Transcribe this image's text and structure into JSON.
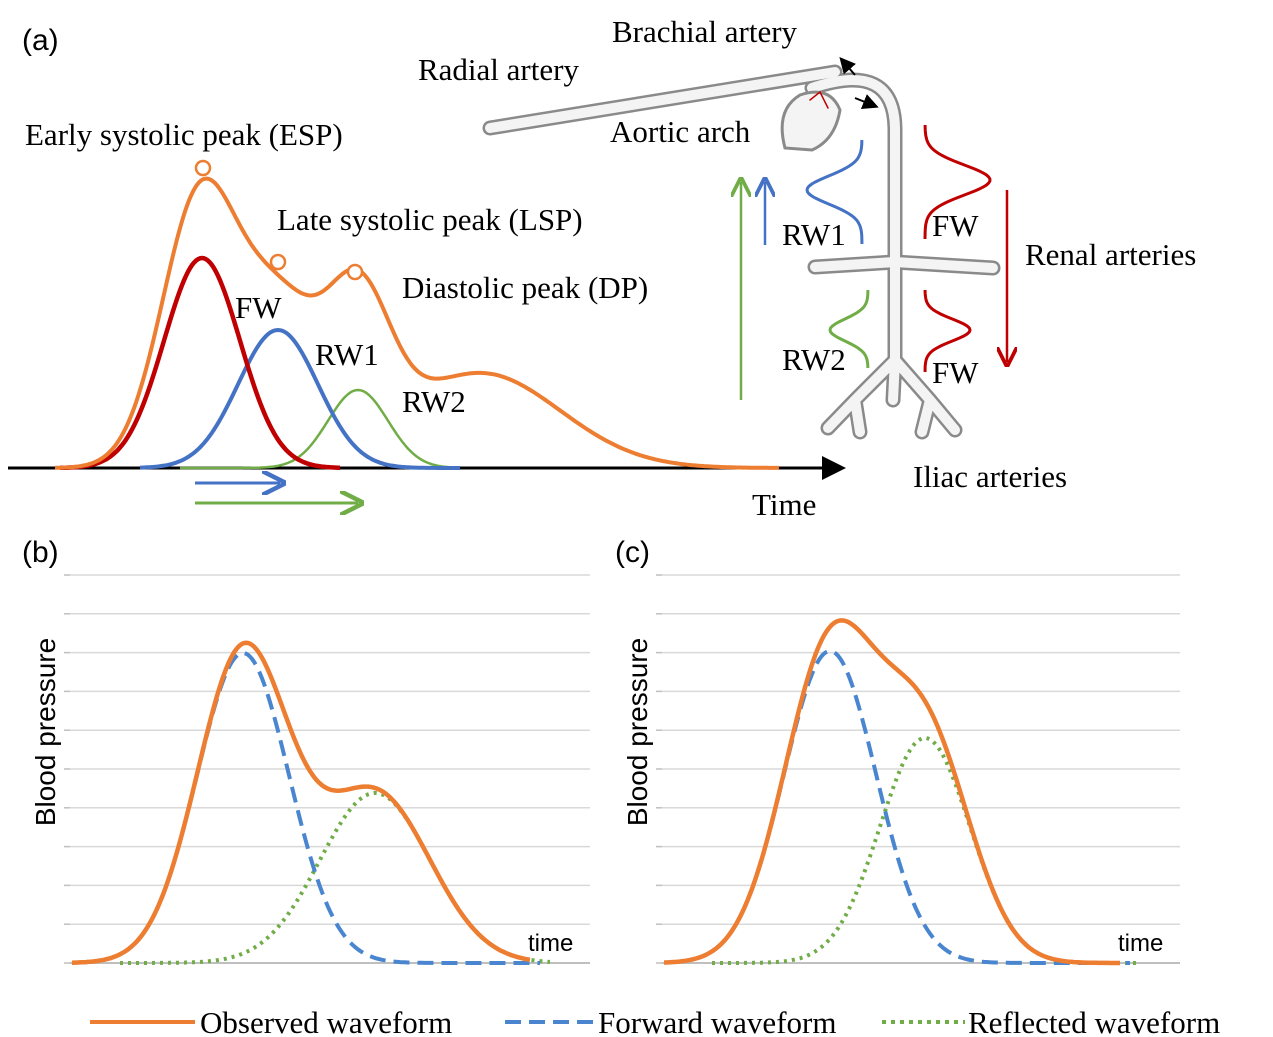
{
  "panel_a": {
    "label": "(a)",
    "waveform": {
      "esp": "Early systolic peak (ESP)",
      "lsp": "Late systolic peak (LSP)",
      "dp": "Diastolic peak (DP)",
      "fw": "FW",
      "rw1": "RW1",
      "rw2": "RW2",
      "x_label": "Time"
    },
    "anatomy": {
      "brachial": "Brachial artery",
      "radial": "Radial artery",
      "aortic_arch": "Aortic arch",
      "rw1": "RW1",
      "fw_upper": "FW",
      "renal": "Renal arteries",
      "rw2": "RW2",
      "fw_lower": "FW",
      "iliac": "Iliac arteries"
    }
  },
  "panel_b": {
    "label": "(b)",
    "y_label": "Blood pressure",
    "x_label": "time"
  },
  "panel_c": {
    "label": "(c)",
    "y_label": "Blood pressure",
    "x_label": "time"
  },
  "legend": [
    "Observed waveform",
    "Forward waveform",
    "Reflected waveform"
  ]
}
